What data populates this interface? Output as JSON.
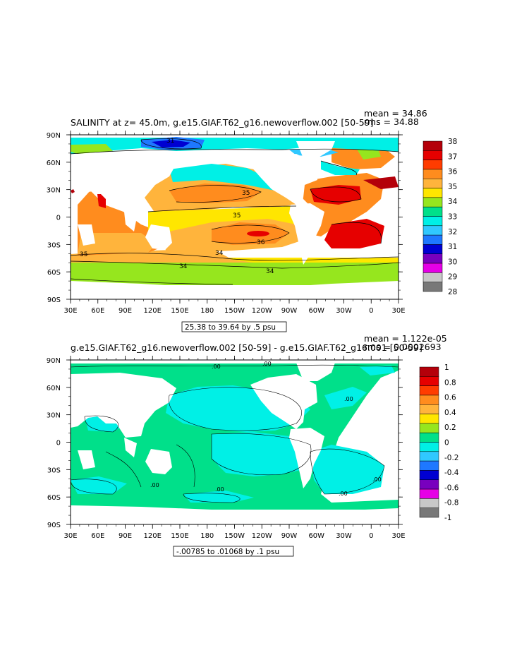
{
  "panel1": {
    "title": "SALINITY at z=  45.0m, g.e15.GIAF.T62_g16.newoverflow.002 [50-59]",
    "mean_label": "mean = 34.86",
    "rms_label": "rms = 34.88",
    "range_label": "25.38 to 39.64 by .5 psu"
  },
  "panel2": {
    "title": "g.e15.GIAF.T62_g16.newoverflow.002 [50-59] - g.e15.GIAF.T62_g16.001 [50-59]",
    "mean_label": "mean = 1.122e-05",
    "rms_label": "rms = 0.0002693",
    "range_label": "-.00785 to .01068 by .1 psu"
  },
  "colors": {
    "ocean_fill": "#00e08a",
    "land": "#ffffff",
    "cyan": "#00f0e6",
    "yellow": "#ffe600",
    "orange_light": "#ffb43c",
    "orange": "#ff8c1e",
    "red": "#e60000",
    "dark_red": "#b4000a",
    "light_blue": "#30c8ff",
    "blue": "#1e78ff",
    "dark_blue": "#0000d2"
  },
  "chart_data": [
    {
      "type": "heatmap",
      "title": "SALINITY at z=  45.0m, g.e15.GIAF.T62_g16.newoverflow.002 [50-59]",
      "x_tick_labels": [
        "30E",
        "60E",
        "90E",
        "120E",
        "150E",
        "180",
        "150W",
        "120W",
        "90W",
        "60W",
        "30W",
        "0",
        "30E"
      ],
      "y_tick_labels": [
        "90N",
        "60N",
        "30N",
        "0",
        "30S",
        "60S",
        "90S"
      ],
      "xlim": [
        30,
        390
      ],
      "ylim": [
        -90,
        90
      ],
      "colorbar": {
        "levels": [
          "38",
          "37",
          "36",
          "35",
          "34",
          "33",
          "32",
          "31",
          "30",
          "29",
          "28"
        ],
        "colors": [
          "#b4000a",
          "#e60000",
          "#ff3c00",
          "#ff8c1e",
          "#ffb43c",
          "#ffe600",
          "#96e61e",
          "#00e08a",
          "#00f0e6",
          "#30c8ff",
          "#1e78ff",
          "#0000d2",
          "#7800be",
          "#e600e6",
          "#c8c8c8",
          "#787878"
        ]
      },
      "contour_labels": [
        "31",
        "35",
        "35",
        "36",
        "35",
        "34",
        "34",
        "34"
      ],
      "statistics": {
        "mean": 34.86,
        "rms": 34.88
      },
      "range_note": "25.38 to 39.64 by .5 psu"
    },
    {
      "type": "heatmap",
      "title": "g.e15.GIAF.T62_g16.newoverflow.002 [50-59] - g.e15.GIAF.T62_g16.001 [50-59]",
      "x_tick_labels": [
        "30E",
        "60E",
        "90E",
        "120E",
        "150E",
        "180",
        "150W",
        "120W",
        "90W",
        "60W",
        "30W",
        "0",
        "30E"
      ],
      "y_tick_labels": [
        "90N",
        "60N",
        "30N",
        "0",
        "30S",
        "60S",
        "90S"
      ],
      "xlim": [
        30,
        390
      ],
      "ylim": [
        -90,
        90
      ],
      "colorbar": {
        "levels": [
          "1",
          "0.8",
          "0.6",
          "0.4",
          "0.2",
          "0",
          "-0.2",
          "-0.4",
          "-0.6",
          "-0.8",
          "-1"
        ],
        "colors": [
          "#b4000a",
          "#e60000",
          "#ff3c00",
          "#ff8c1e",
          "#ffb43c",
          "#ffe600",
          "#96e61e",
          "#00e08a",
          "#00f0e6",
          "#30c8ff",
          "#1e78ff",
          "#0000d2",
          "#7800be",
          "#e600e6",
          "#c8c8c8",
          "#787878"
        ]
      },
      "contour_labels": [
        ".00",
        ".00",
        ".00",
        ".00",
        ".00",
        ".00",
        ".00"
      ],
      "statistics": {
        "mean": 1.122e-05,
        "rms": 0.0002693
      },
      "range_note": "-.00785 to .01068 by .1 psu"
    }
  ]
}
